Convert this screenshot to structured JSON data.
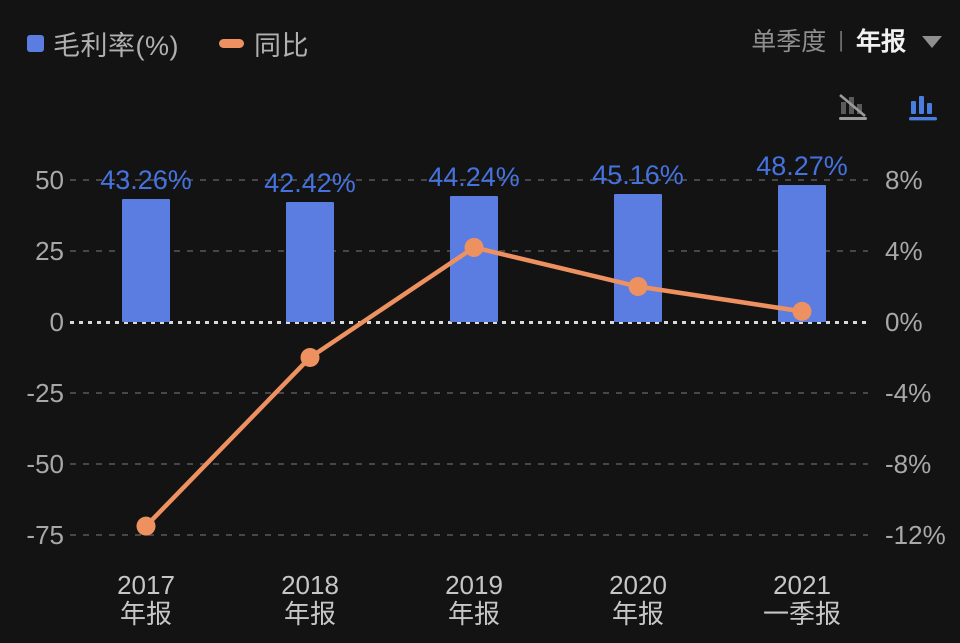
{
  "legend": {
    "bar_label": "毛利率(%)",
    "line_label": "同比"
  },
  "period_toggle": {
    "options": [
      "单季度",
      "年报"
    ],
    "separator": "|",
    "selected": "年报"
  },
  "toolbar": {
    "icons": [
      "bar-chart-crossed-icon",
      "bar-chart-active-icon"
    ]
  },
  "colors": {
    "background": "#131313",
    "bar": "#5b7ce0",
    "bar_value_label": "#4572de",
    "line": "#ee9160",
    "axis_text": "#a8a8a8",
    "x_axis_text": "#c6c6c6",
    "legend_text": "#b0b0b0",
    "selected_period": "#f2f2f2",
    "unselected_period": "#8f8f8f",
    "gridline": "#474747",
    "zero_line": "#d9d9d9",
    "icon_active_blue": "#4a7de0",
    "icon_gray": "#8a8a8a"
  },
  "chart_data": {
    "type": "bar",
    "subtype": "bar-line combo, dark theme",
    "title": "",
    "categories": [
      {
        "year": "2017",
        "period": "年报"
      },
      {
        "year": "2018",
        "period": "年报"
      },
      {
        "year": "2019",
        "period": "年报"
      },
      {
        "year": "2020",
        "period": "年报"
      },
      {
        "year": "2021",
        "period": "一季报"
      }
    ],
    "series": [
      {
        "name": "毛利率(%)",
        "type": "bar",
        "axis": "left",
        "color": "#5b7ce0",
        "values": [
          43.26,
          42.42,
          44.24,
          45.16,
          48.27
        ],
        "labels": [
          "43.26%",
          "42.42%",
          "44.24%",
          "45.16%",
          "48.27%"
        ]
      },
      {
        "name": "同比",
        "type": "line",
        "axis": "right",
        "color": "#ee9160",
        "values_pct": [
          -11.5,
          -2.0,
          4.2,
          2.0,
          0.6
        ]
      }
    ],
    "left_axis": {
      "ticks": [
        {
          "label": "50",
          "value": 50
        },
        {
          "label": "25",
          "value": 25
        },
        {
          "label": "0",
          "value": 0
        },
        {
          "label": "-25",
          "value": -25
        },
        {
          "label": "-50",
          "value": -50
        },
        {
          "label": "-75",
          "value": -75
        }
      ],
      "range": [
        -75,
        50
      ]
    },
    "right_axis": {
      "ticks": [
        {
          "label": "8%",
          "value": 8
        },
        {
          "label": "4%",
          "value": 4
        },
        {
          "label": "0%",
          "value": 0
        },
        {
          "label": "-4%",
          "value": -4
        },
        {
          "label": "-8%",
          "value": -8
        },
        {
          "label": "-12%",
          "value": -12
        }
      ],
      "range": [
        -12,
        8
      ]
    },
    "grid": "horizontal dashed lines on, zero line emphasized white dotted",
    "legend_position": "top-left"
  }
}
